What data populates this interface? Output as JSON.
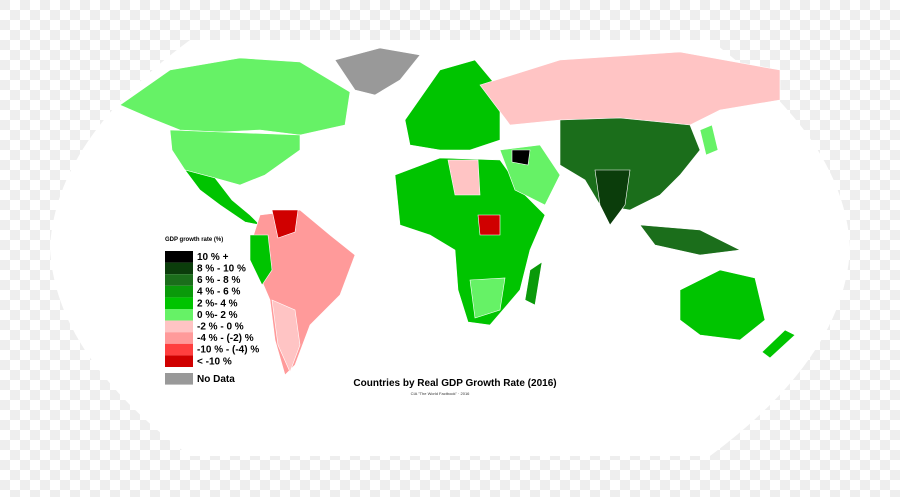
{
  "title": "Countries by Real GDP Growth Rate (2016)",
  "source": "CIA \"The World Factbook\" · 2016",
  "legend": {
    "title": "GDP growth rate (%)",
    "items": [
      {
        "label": "10 % +",
        "color": "#000000"
      },
      {
        "label": "8 % - 10 %",
        "color": "#0b3d0b"
      },
      {
        "label": "6 % - 8 %",
        "color": "#1b6e1b"
      },
      {
        "label": "4 % - 6 %",
        "color": "#0a9a0a"
      },
      {
        "label": "2 %- 4 %",
        "color": "#00c400"
      },
      {
        "label": "0 %- 2 %",
        "color": "#66f266"
      },
      {
        "label": "-2 % - 0 %",
        "color": "#ffc4c4"
      },
      {
        "label": "-4 % - (-2) %",
        "color": "#ff9a9a"
      },
      {
        "label": "-10 % - (-4) %",
        "color": "#ff3f3f"
      },
      {
        "label": "< -10 %",
        "color": "#d00000"
      },
      {
        "label": "No Data",
        "color": "#999999"
      }
    ]
  }
}
